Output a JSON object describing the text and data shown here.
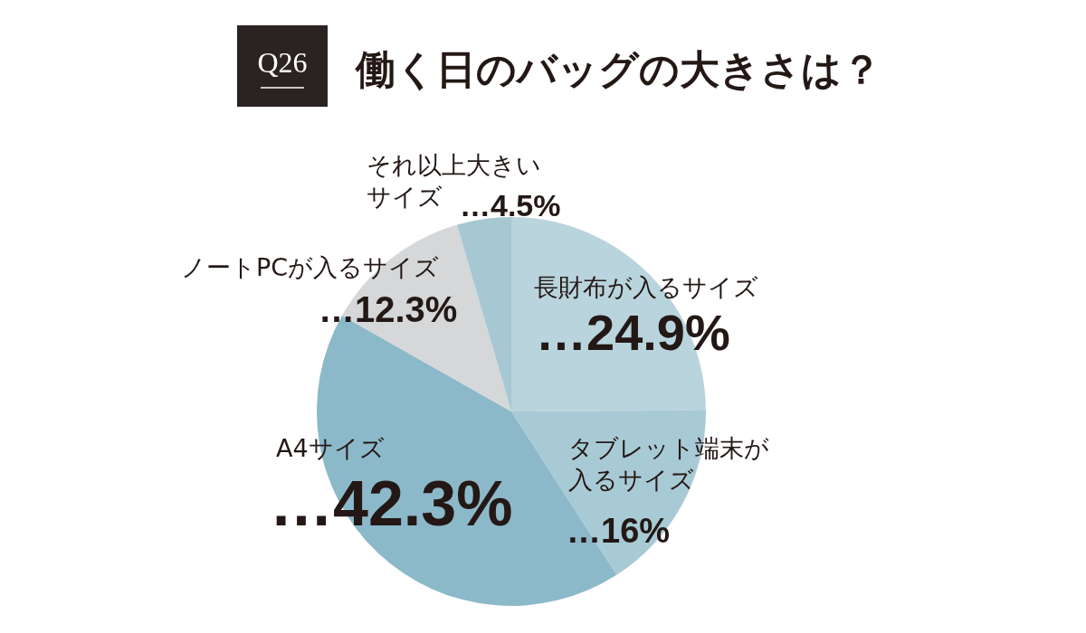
{
  "chart_data": {
    "type": "pie",
    "title": "働く日のバッグの大きさは？",
    "annotations": [
      "Q26"
    ],
    "categories": [
      "長財布が入るサイズ",
      "タブレット端末が入るサイズ",
      "A4サイズ",
      "ノートPCが入るサイズ",
      "それ以上大きいサイズ"
    ],
    "values": [
      24.9,
      16,
      42.3,
      12.3,
      4.5
    ],
    "colors": [
      "#b9d4dd",
      "#a8cad5",
      "#8cb9c9",
      "#d5d7d9",
      "#a6c8d3"
    ],
    "value_labels": [
      "…24.9%",
      "…16%",
      "…42.3%",
      "…12.3%",
      "…4.5%"
    ]
  }
}
